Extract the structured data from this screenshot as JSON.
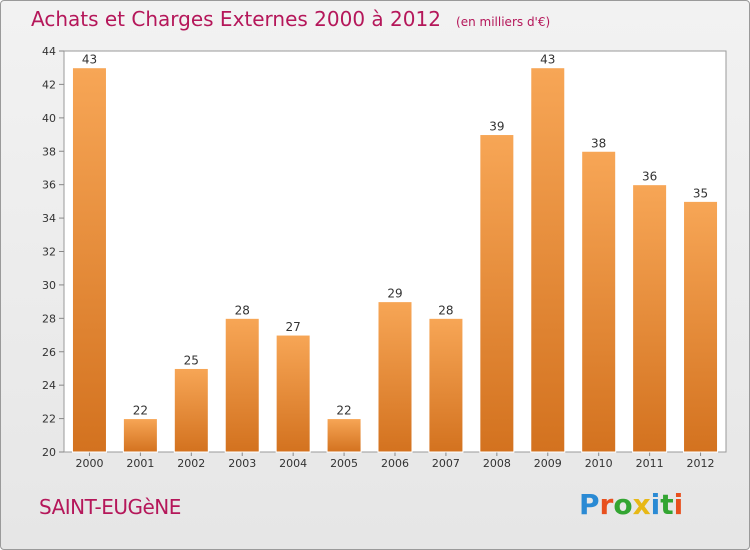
{
  "header": {
    "title": "Achats et Charges Externes 2000 à 2012",
    "unit": "(en milliers d'€)"
  },
  "footer": {
    "commune": "SAINT-EUGèNE",
    "logo_text": "Proxiti",
    "logo_colors": [
      "#2a8ad4",
      "#e8501e",
      "#33a532",
      "#e7b816",
      "#2a8ad4",
      "#33a532",
      "#e8501e"
    ]
  },
  "colors": {
    "bar_top": "#f7a656",
    "bar_bottom": "#d3721f",
    "title": "#b5175a"
  },
  "chart_data": {
    "type": "bar",
    "title": "Achats et Charges Externes 2000 à 2012",
    "subtitle": "(en milliers d'€)",
    "categories": [
      "2000",
      "2001",
      "2002",
      "2003",
      "2004",
      "2005",
      "2006",
      "2007",
      "2008",
      "2009",
      "2010",
      "2011",
      "2012"
    ],
    "values": [
      43,
      22,
      25,
      28,
      27,
      22,
      29,
      28,
      39,
      43,
      38,
      36,
      35
    ],
    "ylim": [
      20,
      44
    ],
    "yticks": [
      20,
      22,
      24,
      26,
      28,
      30,
      32,
      34,
      36,
      38,
      40,
      42,
      44
    ],
    "grid": false,
    "legend": "none"
  }
}
